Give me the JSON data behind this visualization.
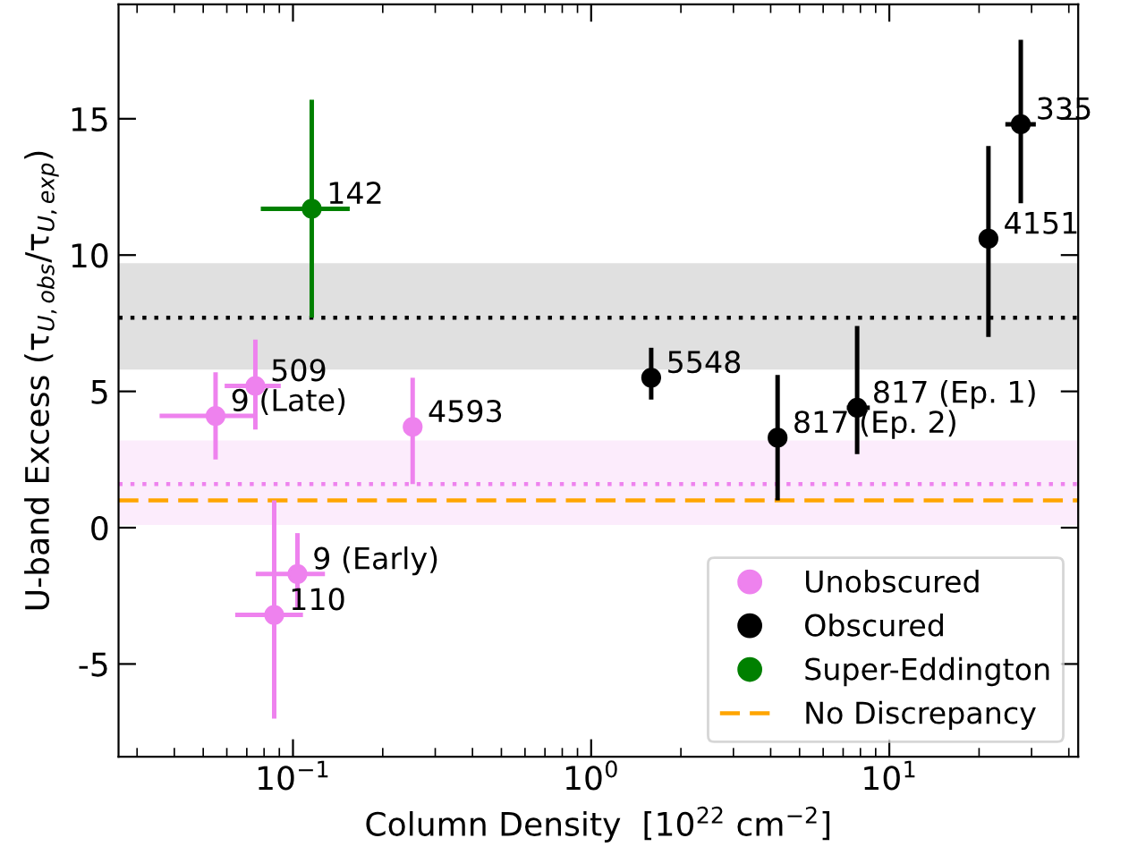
{
  "chart_data": {
    "type": "scatter",
    "xlabel": "Column Density  [10$^{22}$ cm$^{−2}$]",
    "ylabel": "U-band Excess (τ$_{U,obs}$/τ$_{U,exp}$)",
    "log": "x",
    "xlim": [
      0.026,
      43
    ],
    "ylim": [
      -8.4,
      19.2
    ],
    "xticks": [
      {
        "value": 0.1,
        "label": "10$^{−1}$"
      },
      {
        "value": 1,
        "label": "10$^{0}$"
      },
      {
        "value": 10,
        "label": "10$^{1}$"
      }
    ],
    "yticks": [
      -5,
      0,
      5,
      10,
      15
    ],
    "marker": "circle",
    "legend": "bottom right",
    "grid": false,
    "series": [
      {
        "name": "Unobscured",
        "color": "#ee82ee",
        "x": [
          0.055,
          0.0748,
          0.252,
          0.1035,
          0.0865
        ],
        "values": [
          4.1,
          5.2,
          3.7,
          -1.7,
          -3.2
        ],
        "errors": [
          [
            2.5,
            5.7
          ],
          [
            3.6,
            6.9
          ],
          [
            1.6,
            5.5
          ],
          [
            -3.0,
            -0.2
          ],
          [
            -7.0,
            1.0
          ]
        ],
        "xerrors": [
          [
            0.0357,
            0.0748
          ],
          [
            0.059,
            0.091
          ],
          [
            0.24,
            0.26
          ],
          [
            0.075,
            0.128
          ],
          [
            0.064,
            0.108
          ]
        ]
      },
      {
        "name": "Obscured",
        "color": "#000000",
        "x": [
          1.59,
          4.22,
          7.8,
          21.5,
          27.6
        ],
        "values": [
          5.5,
          3.3,
          4.4,
          10.6,
          14.8
        ],
        "errors": [
          [
            4.7,
            6.6
          ],
          [
            1.0,
            5.6
          ],
          [
            2.7,
            7.4
          ],
          [
            7.0,
            14.0
          ],
          [
            11.9,
            17.9
          ]
        ],
        "xerrors": [
          null,
          null,
          [
            7.2,
            8.6
          ],
          null,
          [
            24.5,
            31.0
          ]
        ]
      },
      {
        "name": "Super-Eddington",
        "color": "#008000",
        "x": [
          0.1156
        ],
        "values": [
          11.7
        ],
        "errors": [
          [
            7.7,
            15.7
          ]
        ],
        "xerrors": [
          [
            0.078,
            0.155
          ]
        ]
      }
    ],
    "bands": [
      {
        "axis": "y",
        "from": 5.8,
        "to": 9.7,
        "color": "#e0e0e0"
      },
      {
        "axis": "y",
        "from": 0.1,
        "to": 3.2,
        "color": "#fcecfc"
      }
    ],
    "ref_lines": [
      {
        "axis": "y",
        "value": 7.7,
        "color": "#000000",
        "line_style": "dotted"
      },
      {
        "axis": "y",
        "value": 1.6,
        "color": "#ee82ee",
        "line_style": "dotted"
      },
      {
        "axis": "y",
        "value": 1.0,
        "color": "#ffa500",
        "line_style": "dashed",
        "label": "No Discrepancy"
      }
    ],
    "annotations": [
      {
        "text": "9 (Late)",
        "x": 0.055,
        "y": 4.1
      },
      {
        "text": "509",
        "x": 0.0748,
        "y": 5.2
      },
      {
        "text": "4593",
        "x": 0.252,
        "y": 3.7
      },
      {
        "text": "9 (Early)",
        "x": 0.1035,
        "y": -1.7
      },
      {
        "text": "110",
        "x": 0.0865,
        "y": -3.2
      },
      {
        "text": "142",
        "x": 0.1156,
        "y": 11.7
      },
      {
        "text": "5548",
        "x": 1.59,
        "y": 5.5
      },
      {
        "text": "817 (Ep. 2)",
        "x": 4.22,
        "y": 3.3
      },
      {
        "text": "817 (Ep. 1)",
        "x": 7.8,
        "y": 4.4
      },
      {
        "text": "4151",
        "x": 21.5,
        "y": 10.6
      },
      {
        "text": "335",
        "x": 27.6,
        "y": 14.8
      }
    ]
  }
}
